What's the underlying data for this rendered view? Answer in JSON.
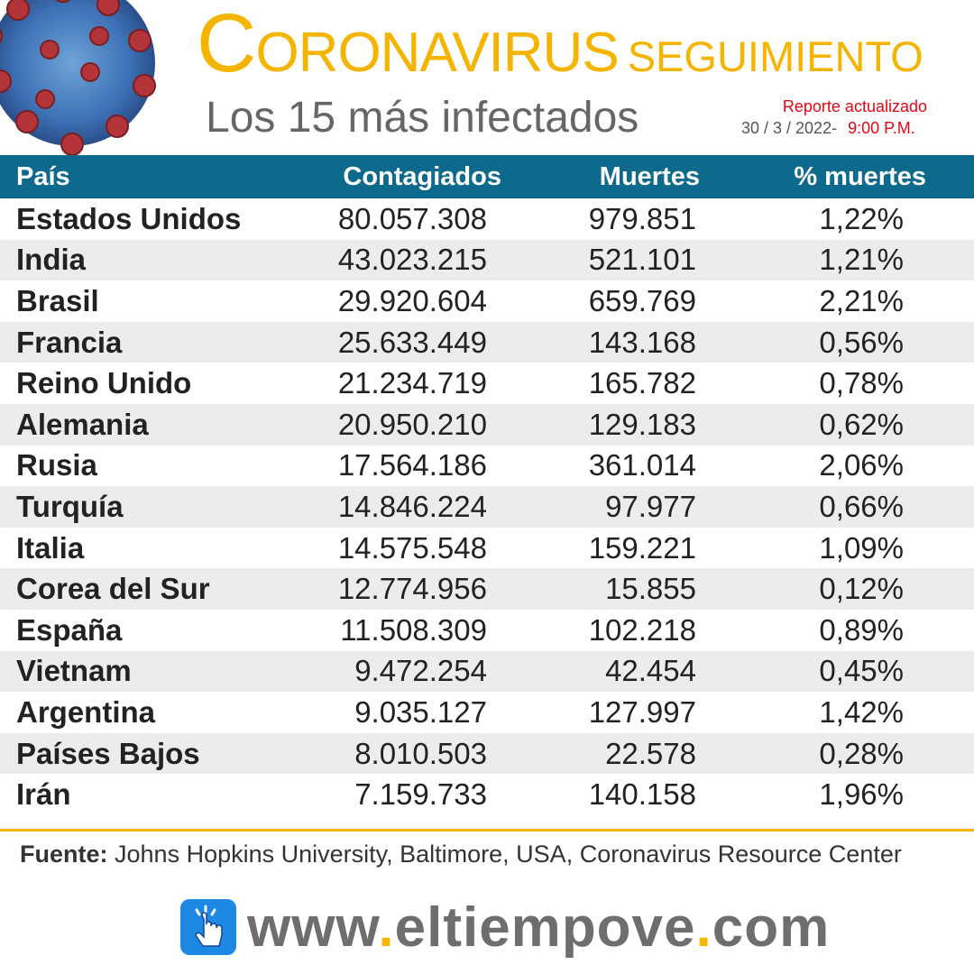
{
  "header": {
    "title_initial": "C",
    "title_main": "ORONAVIRUS",
    "title_sub": "SEGUIMIENTO",
    "subtitle": "Los 15 más infectados",
    "report_label": "Reporte actualizado",
    "report_date": "30 / 3 / 2022-",
    "report_time": "9:00 P.M."
  },
  "table": {
    "headers": {
      "country": "País",
      "cases": "Contagiados",
      "deaths": "Muertes",
      "pct": "% muertes"
    },
    "rows": [
      {
        "country": "Estados Unidos",
        "cases": "80.057.308",
        "deaths": "979.851",
        "pct": "1,22%"
      },
      {
        "country": "India",
        "cases": "43.023.215",
        "deaths": "521.101",
        "pct": "1,21%"
      },
      {
        "country": "Brasil",
        "cases": "29.920.604",
        "deaths": "659.769",
        "pct": "2,21%"
      },
      {
        "country": "Francia",
        "cases": "25.633.449",
        "deaths": "143.168",
        "pct": "0,56%"
      },
      {
        "country": "Reino Unido",
        "cases": "21.234.719",
        "deaths": "165.782",
        "pct": "0,78%"
      },
      {
        "country": "Alemania",
        "cases": "20.950.210",
        "deaths": "129.183",
        "pct": "0,62%"
      },
      {
        "country": "Rusia",
        "cases": "17.564.186",
        "deaths": "361.014",
        "pct": "2,06%"
      },
      {
        "country": "Turquía",
        "cases": "14.846.224",
        "deaths": "97.977",
        "pct": "0,66%"
      },
      {
        "country": "Italia",
        "cases": "14.575.548",
        "deaths": "159.221",
        "pct": "1,09%"
      },
      {
        "country": "Corea del Sur",
        "cases": "12.774.956",
        "deaths": "15.855",
        "pct": "0,12%"
      },
      {
        "country": "España",
        "cases": "11.508.309",
        "deaths": "102.218",
        "pct": "0,89%"
      },
      {
        "country": "Vietnam",
        "cases": "9.472.254",
        "deaths": "42.454",
        "pct": "0,45%"
      },
      {
        "country": "Argentina",
        "cases": "9.035.127",
        "deaths": "127.997",
        "pct": "1,42%"
      },
      {
        "country": "Países Bajos",
        "cases": "8.010.503",
        "deaths": "22.578",
        "pct": "0,28%"
      },
      {
        "country": "Irán",
        "cases": "7.159.733",
        "deaths": "140.158",
        "pct": "1,96%"
      }
    ]
  },
  "footer": {
    "source_label": "Fuente:",
    "source_text": "Johns Hopkins University, Baltimore, USA, Coronavirus Resource Center",
    "url_www": "www",
    "url_dot1": ".",
    "url_name": "eltiempove",
    "url_dot2": ".",
    "url_tld": "com"
  },
  "colors": {
    "accent_yellow": "#f5b400",
    "header_blue": "#0e6a8c",
    "alert_red": "#e30613",
    "link_blue": "#1e88e5"
  },
  "icons": [
    "virus-illustration",
    "hand-pointer-icon"
  ]
}
